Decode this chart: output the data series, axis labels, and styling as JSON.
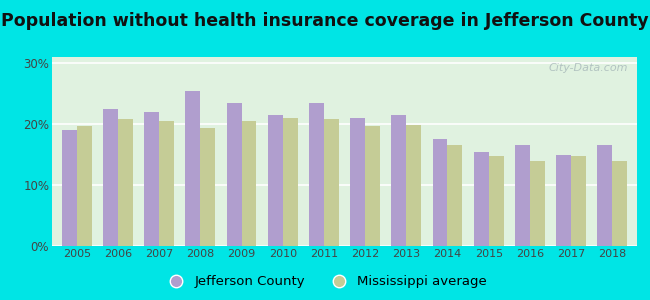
{
  "title": "Population without health insurance coverage in Jefferson County",
  "years": [
    2005,
    2006,
    2007,
    2008,
    2009,
    2010,
    2011,
    2012,
    2013,
    2014,
    2015,
    2016,
    2017,
    2018
  ],
  "jefferson_county": [
    19.0,
    22.5,
    22.0,
    25.5,
    23.5,
    21.5,
    23.5,
    21.0,
    21.5,
    17.5,
    15.5,
    16.5,
    15.0,
    16.5
  ],
  "mississippi_avg": [
    19.7,
    20.8,
    20.5,
    19.3,
    20.5,
    21.0,
    20.8,
    19.7,
    19.8,
    16.5,
    14.8,
    14.0,
    14.8,
    14.0
  ],
  "jefferson_color": "#b09ece",
  "mississippi_color": "#c5cc96",
  "background_color": "#00e5e5",
  "plot_bg": "#e0f2e0",
  "ylabel_ticks": [
    "0%",
    "10%",
    "20%",
    "30%"
  ],
  "yticks": [
    0,
    10,
    20,
    30
  ],
  "ylim": [
    0,
    31
  ],
  "legend_jefferson": "Jefferson County",
  "legend_mississippi": "Mississippi average",
  "watermark": "City-Data.com",
  "title_fontsize": 12.5,
  "bar_width": 0.36
}
